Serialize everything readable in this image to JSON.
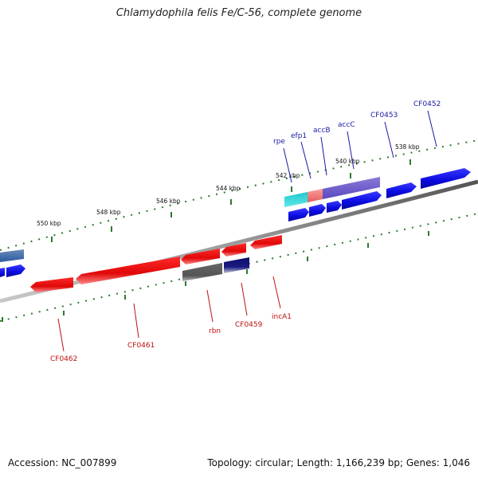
{
  "title": "Chlamydophila felis Fe/C-56, complete genome",
  "footer": {
    "accession": "Accession: NC_007899",
    "summary": "Topology: circular; Length: 1,166,239 bp; Genes: 1,046"
  },
  "colors": {
    "forward_gene": "#1010e0",
    "reverse_gene": "#e01010",
    "forward_label": "#1a1aa8",
    "reverse_label": "#c01010",
    "backbone": "#888888",
    "tick": "#2d7a2d"
  },
  "scale_labels": [
    "550 kbp",
    "548 kbp",
    "546 kbp",
    "544 kbp",
    "542 kbp",
    "540 kbp",
    "538 kbp"
  ],
  "forward_labels": [
    "rpe",
    "efp1",
    "accB",
    "accC",
    "CF0453",
    "CF0452"
  ],
  "reverse_labels": [
    "CF0462",
    "CF0461",
    "rbn",
    "CF0459",
    "incA1"
  ]
}
